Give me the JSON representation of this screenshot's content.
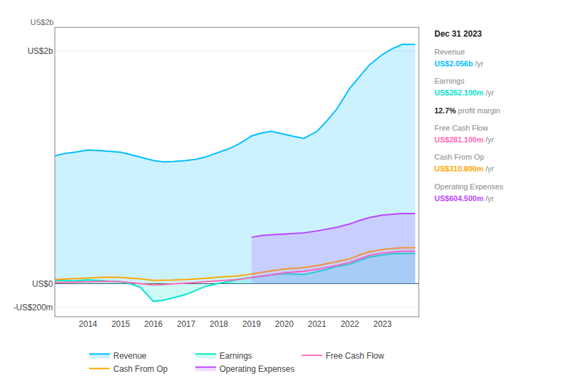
{
  "chart_data": {
    "type": "line",
    "x": [
      2013.0,
      2013.3,
      2013.6,
      2014.0,
      2014.3,
      2014.6,
      2015.0,
      2015.3,
      2015.6,
      2016.0,
      2016.3,
      2016.6,
      2017.0,
      2017.3,
      2017.6,
      2018.0,
      2018.3,
      2018.6,
      2019.0,
      2019.3,
      2019.6,
      2020.0,
      2020.3,
      2020.6,
      2021.0,
      2021.3,
      2021.6,
      2022.0,
      2022.3,
      2022.6,
      2023.0,
      2023.3,
      2023.6,
      2024.0
    ],
    "series": [
      {
        "name": "Revenue",
        "color": "#00bfff",
        "type": "area",
        "values": [
          1100,
          1120,
          1130,
          1150,
          1145,
          1140,
          1130,
          1110,
          1090,
          1060,
          1048,
          1050,
          1060,
          1070,
          1090,
          1130,
          1160,
          1200,
          1270,
          1295,
          1310,
          1285,
          1265,
          1250,
          1310,
          1400,
          1500,
          1680,
          1780,
          1880,
          1970,
          2020,
          2056,
          2056
        ]
      },
      {
        "name": "Earnings",
        "color": "#00e5cc",
        "type": "area",
        "values": [
          30,
          28,
          25,
          35,
          30,
          25,
          18,
          0,
          -30,
          -150,
          -140,
          -120,
          -90,
          -55,
          -20,
          5,
          20,
          40,
          55,
          65,
          78,
          88,
          85,
          80,
          105,
          125,
          150,
          170,
          200,
          230,
          248,
          258,
          262,
          262
        ]
      },
      {
        "name": "Free Cash Flow",
        "color": "#ff69b4",
        "type": "line",
        "values": [
          10,
          12,
          14,
          18,
          20,
          22,
          20,
          12,
          5,
          -10,
          -5,
          0,
          5,
          12,
          20,
          28,
          32,
          38,
          55,
          65,
          78,
          95,
          102,
          108,
          125,
          140,
          158,
          185,
          215,
          245,
          265,
          275,
          281,
          281
        ]
      },
      {
        "name": "Cash From Op",
        "color": "#ffa500",
        "type": "line",
        "values": [
          38,
          42,
          44,
          52,
          56,
          58,
          55,
          50,
          44,
          30,
          30,
          33,
          38,
          42,
          48,
          58,
          62,
          68,
          85,
          100,
          112,
          128,
          135,
          140,
          158,
          172,
          190,
          215,
          248,
          275,
          295,
          305,
          311,
          311
        ]
      },
      {
        "name": "Operating Expenses",
        "color": "#bb44ff",
        "type": "area",
        "values": [
          null,
          null,
          null,
          null,
          null,
          null,
          null,
          null,
          null,
          null,
          null,
          null,
          null,
          null,
          null,
          null,
          null,
          null,
          400,
          415,
          422,
          430,
          435,
          438,
          455,
          468,
          485,
          515,
          545,
          570,
          590,
          598,
          604,
          604
        ]
      }
    ],
    "xlim": [
      2013.0,
      2024.1
    ],
    "xticks": [
      2014,
      2015,
      2016,
      2017,
      2018,
      2019,
      2020,
      2021,
      2022,
      2023
    ],
    "ylim": [
      -280,
      2200
    ],
    "yticks": [
      {
        "value": 2000,
        "label": "US$2b"
      },
      {
        "value": 0,
        "label": "US$0"
      },
      {
        "value": -200,
        "label": "-US$200m"
      }
    ],
    "grid": "y",
    "legend": "bottom",
    "annotations": [
      {
        "text": "US$2b"
      }
    ],
    "info_box": {
      "title": "Dec 31 2023",
      "rows": [
        {
          "label": "Revenue",
          "value": "US$2.056b",
          "suffix": " /yr",
          "color": "#00bfff"
        },
        {
          "label": "Earnings",
          "value": "US$262.100m",
          "suffix": " /yr",
          "color": "#00e5cc"
        },
        {
          "value": "12.7%",
          "suffix": " profit margin"
        },
        {
          "label": "Free Cash Flow",
          "value": "US$281.100m",
          "suffix": " /yr",
          "color": "#ff69b4"
        },
        {
          "label": "Cash From Op",
          "value": "US$310.800m",
          "suffix": " /yr",
          "color": "#ffa500"
        },
        {
          "label": "Operating Expenses",
          "value": "US$604.500m",
          "suffix": " /yr",
          "color": "#bb44ff"
        }
      ]
    }
  }
}
